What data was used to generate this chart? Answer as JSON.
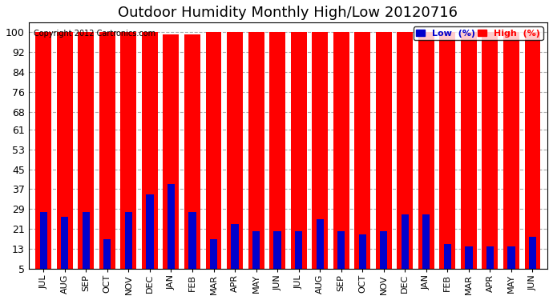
{
  "title": "Outdoor Humidity Monthly High/Low 20120716",
  "copyright": "Copyright 2012 Cartronics.com",
  "months": [
    "JUL",
    "AUG",
    "SEP",
    "OCT",
    "NOV",
    "DEC",
    "JAN",
    "FEB",
    "MAR",
    "APR",
    "MAY",
    "JUN",
    "JUL",
    "AUG",
    "SEP",
    "OCT",
    "NOV",
    "DEC",
    "JAN",
    "FEB",
    "MAR",
    "APR",
    "MAY",
    "JUN"
  ],
  "high_values": [
    100,
    100,
    100,
    100,
    100,
    100,
    99,
    99,
    100,
    100,
    100,
    100,
    100,
    100,
    100,
    100,
    100,
    100,
    100,
    100,
    100,
    100,
    100,
    100
  ],
  "low_values": [
    28,
    26,
    28,
    17,
    28,
    35,
    39,
    28,
    17,
    23,
    20,
    20,
    20,
    25,
    20,
    19,
    20,
    27,
    27,
    15,
    14,
    14,
    14,
    18
  ],
  "bar_width": 0.35,
  "bg_color": "#ffffff",
  "plot_bg_color": "#ffffff",
  "high_color": "#ff0000",
  "low_color": "#0000cc",
  "title_fontsize": 13,
  "yticks": [
    5,
    13,
    21,
    29,
    37,
    45,
    53,
    61,
    68,
    76,
    84,
    92,
    100
  ],
  "ylim": [
    5,
    104
  ],
  "grid_color": "#aaaaaa",
  "legend_low_label": "Low  (%)",
  "legend_high_label": "High  (%)"
}
